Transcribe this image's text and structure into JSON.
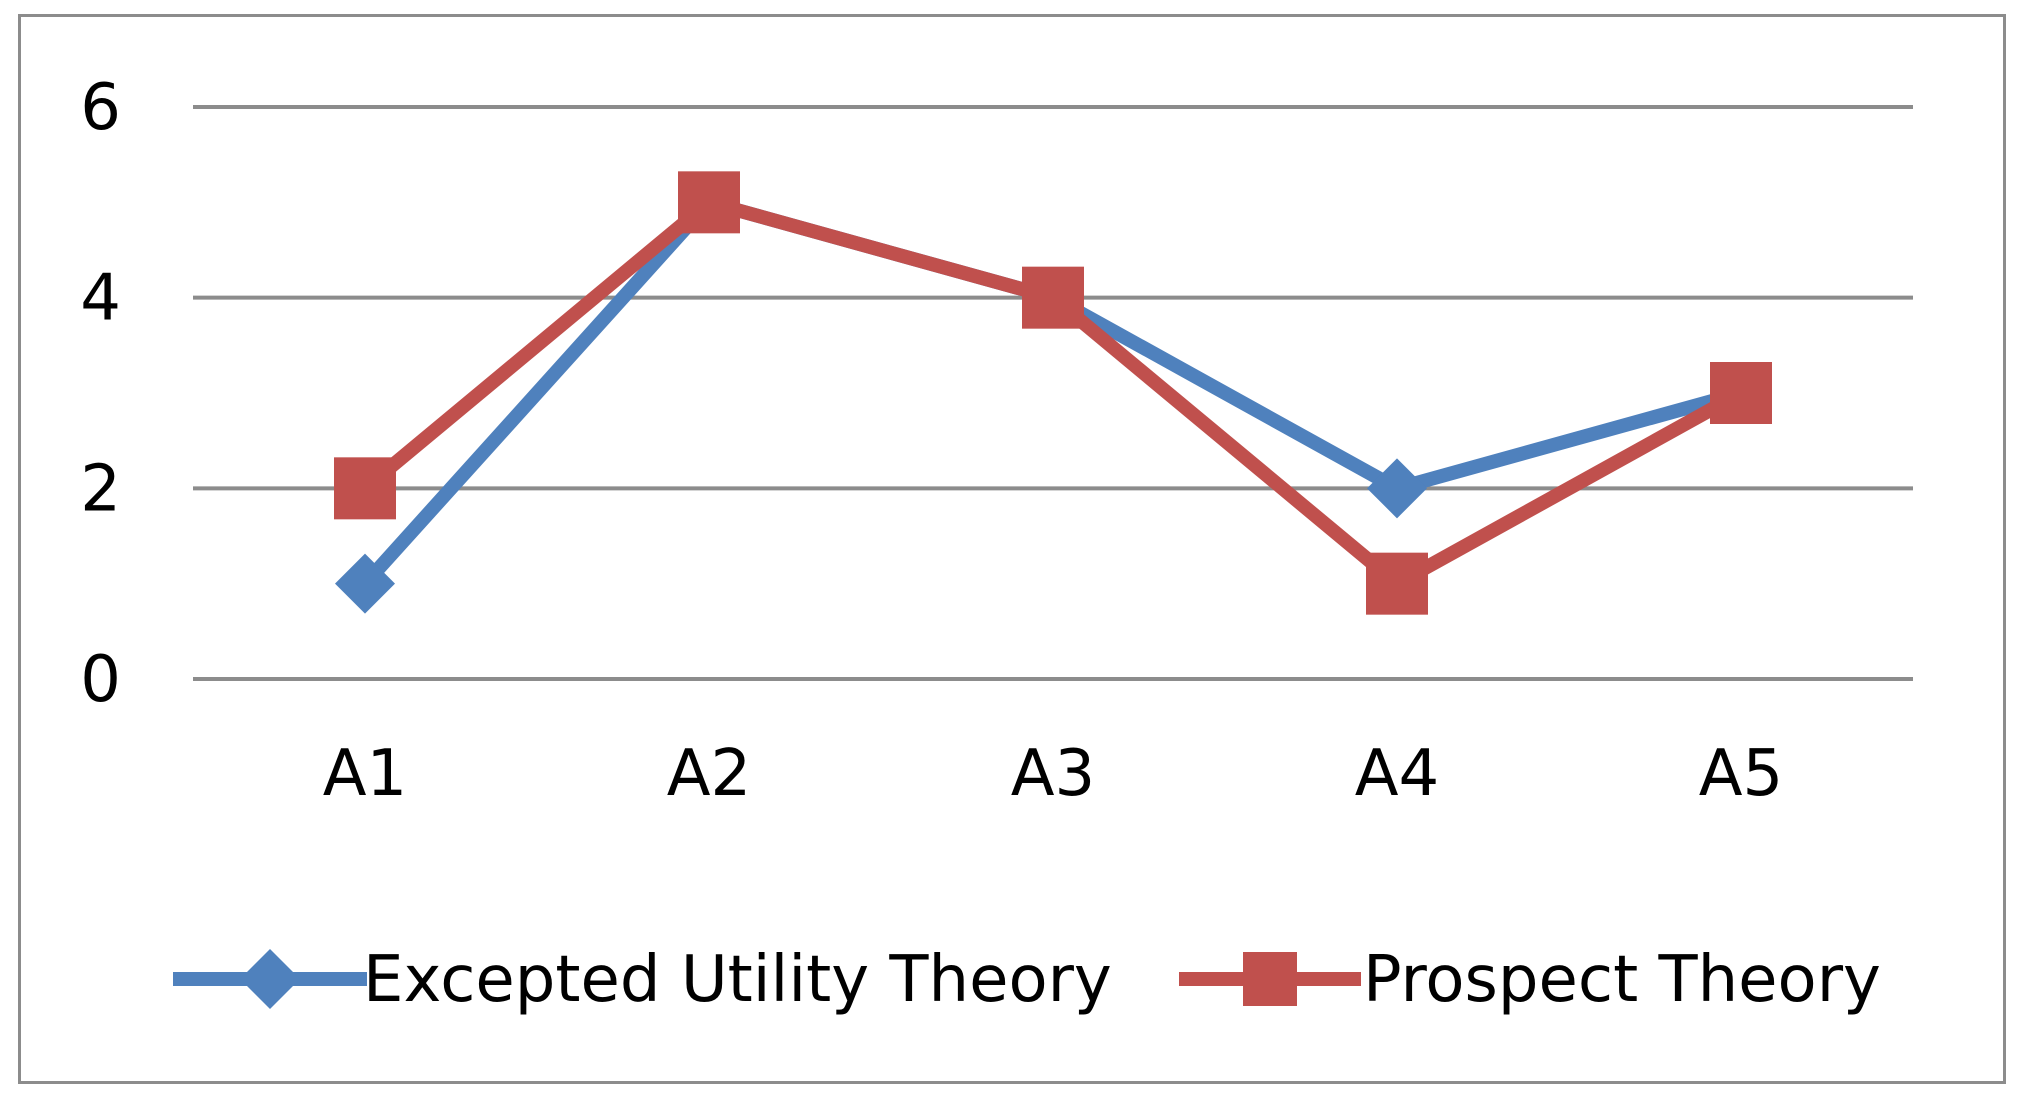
{
  "chart_data": {
    "type": "line",
    "title": "",
    "xlabel": "",
    "ylabel": "",
    "categories": [
      "A1",
      "A2",
      "A3",
      "A4",
      "A5"
    ],
    "ylim": [
      0,
      6
    ],
    "yticks": [
      0,
      2,
      4,
      6
    ],
    "grid": "horizontal",
    "legend_position": "bottom",
    "series": [
      {
        "name": "Excepted Utility Theory",
        "values": [
          1,
          5,
          4,
          2,
          3
        ],
        "color": "#4f81bd",
        "marker": "diamond"
      },
      {
        "name": "Prospect Theory",
        "values": [
          2,
          5,
          4,
          1,
          3
        ],
        "color": "#c0504d",
        "marker": "square"
      }
    ]
  }
}
